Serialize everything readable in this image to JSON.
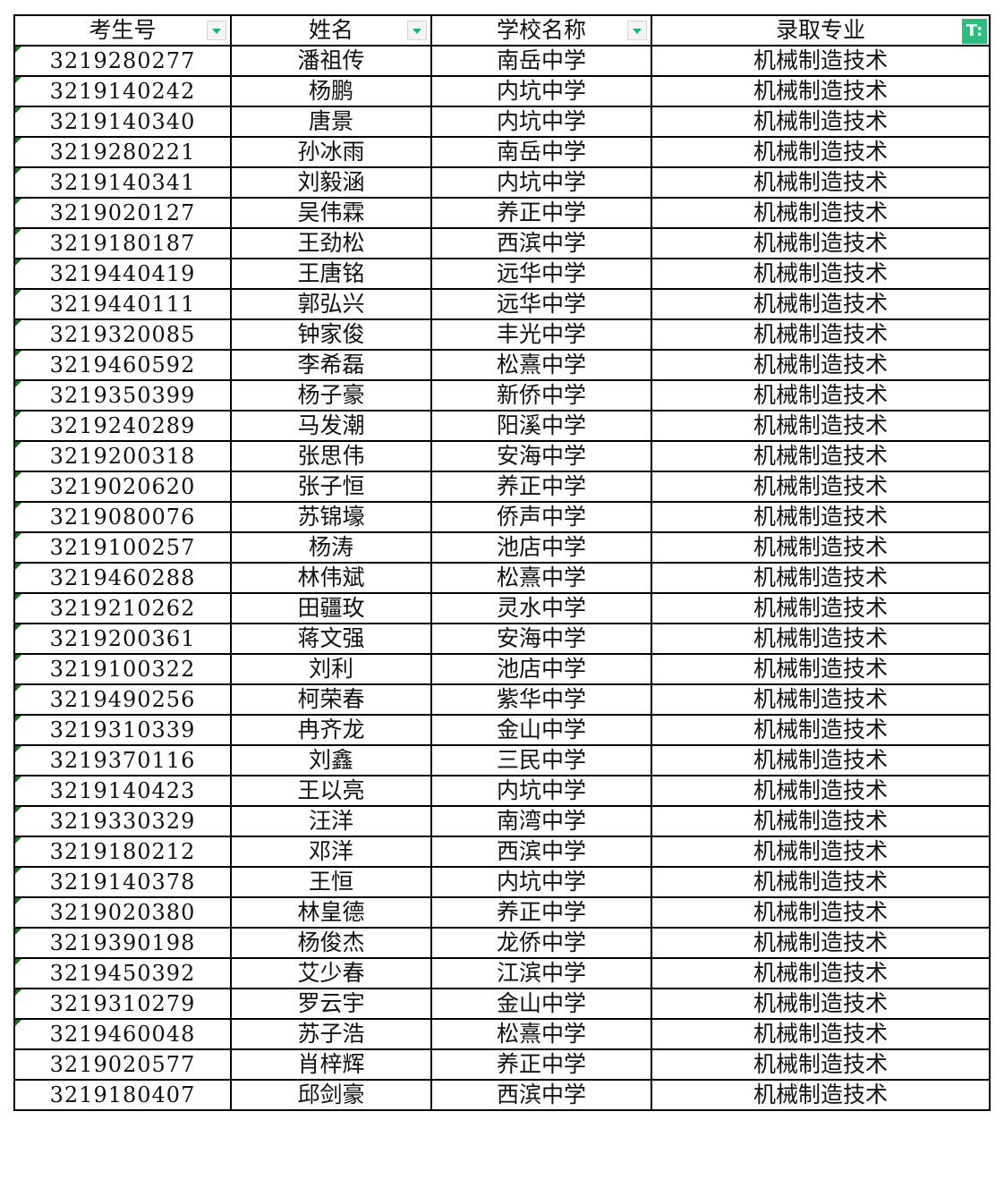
{
  "headers": [
    "考生号",
    "姓名",
    "学校名称",
    "录取专业"
  ],
  "filter_state": {
    "column_0": "dropdown",
    "column_1": "dropdown",
    "column_2": "dropdown",
    "column_3": "filtered"
  },
  "accent_color": "#2fbc7e",
  "rows": [
    [
      "3219280277",
      "潘祖传",
      "南岳中学",
      "机械制造技术"
    ],
    [
      "3219140242",
      "杨鹏",
      "内坑中学",
      "机械制造技术"
    ],
    [
      "3219140340",
      "唐景",
      "内坑中学",
      "机械制造技术"
    ],
    [
      "3219280221",
      "孙冰雨",
      "南岳中学",
      "机械制造技术"
    ],
    [
      "3219140341",
      "刘毅涵",
      "内坑中学",
      "机械制造技术"
    ],
    [
      "3219020127",
      "吴伟霖",
      "养正中学",
      "机械制造技术"
    ],
    [
      "3219180187",
      "王劲松",
      "西滨中学",
      "机械制造技术"
    ],
    [
      "3219440419",
      "王唐铭",
      "远华中学",
      "机械制造技术"
    ],
    [
      "3219440111",
      "郭弘兴",
      "远华中学",
      "机械制造技术"
    ],
    [
      "3219320085",
      "钟家俊",
      "丰光中学",
      "机械制造技术"
    ],
    [
      "3219460592",
      "李希磊",
      "松熹中学",
      "机械制造技术"
    ],
    [
      "3219350399",
      "杨子豪",
      "新侨中学",
      "机械制造技术"
    ],
    [
      "3219240289",
      "马发潮",
      "阳溪中学",
      "机械制造技术"
    ],
    [
      "3219200318",
      "张思伟",
      "安海中学",
      "机械制造技术"
    ],
    [
      "3219020620",
      "张子恒",
      "养正中学",
      "机械制造技术"
    ],
    [
      "3219080076",
      "苏锦壕",
      "侨声中学",
      "机械制造技术"
    ],
    [
      "3219100257",
      "杨涛",
      "池店中学",
      "机械制造技术"
    ],
    [
      "3219460288",
      "林伟斌",
      "松熹中学",
      "机械制造技术"
    ],
    [
      "3219210262",
      "田疆玫",
      "灵水中学",
      "机械制造技术"
    ],
    [
      "3219200361",
      "蒋文强",
      "安海中学",
      "机械制造技术"
    ],
    [
      "3219100322",
      "刘利",
      "池店中学",
      "机械制造技术"
    ],
    [
      "3219490256",
      "柯荣春",
      "紫华中学",
      "机械制造技术"
    ],
    [
      "3219310339",
      "冉齐龙",
      "金山中学",
      "机械制造技术"
    ],
    [
      "3219370116",
      "刘鑫",
      "三民中学",
      "机械制造技术"
    ],
    [
      "3219140423",
      "王以亮",
      "内坑中学",
      "机械制造技术"
    ],
    [
      "3219330329",
      "汪洋",
      "南湾中学",
      "机械制造技术"
    ],
    [
      "3219180212",
      "邓洋",
      "西滨中学",
      "机械制造技术"
    ],
    [
      "3219140378",
      "王恒",
      "内坑中学",
      "机械制造技术"
    ],
    [
      "3219020380",
      "林皇德",
      "养正中学",
      "机械制造技术"
    ],
    [
      "3219390198",
      "杨俊杰",
      "龙侨中学",
      "机械制造技术"
    ],
    [
      "3219450392",
      "艾少春",
      "江滨中学",
      "机械制造技术"
    ],
    [
      "3219310279",
      "罗云宇",
      "金山中学",
      "机械制造技术"
    ],
    [
      "3219460048",
      "苏子浩",
      "松熹中学",
      "机械制造技术"
    ],
    [
      "3219020577",
      "肖梓辉",
      "养正中学",
      "机械制造技术"
    ],
    [
      "3219180407",
      "邱剑豪",
      "西滨中学",
      "机械制造技术"
    ]
  ],
  "text_number_marker_rows": 33
}
